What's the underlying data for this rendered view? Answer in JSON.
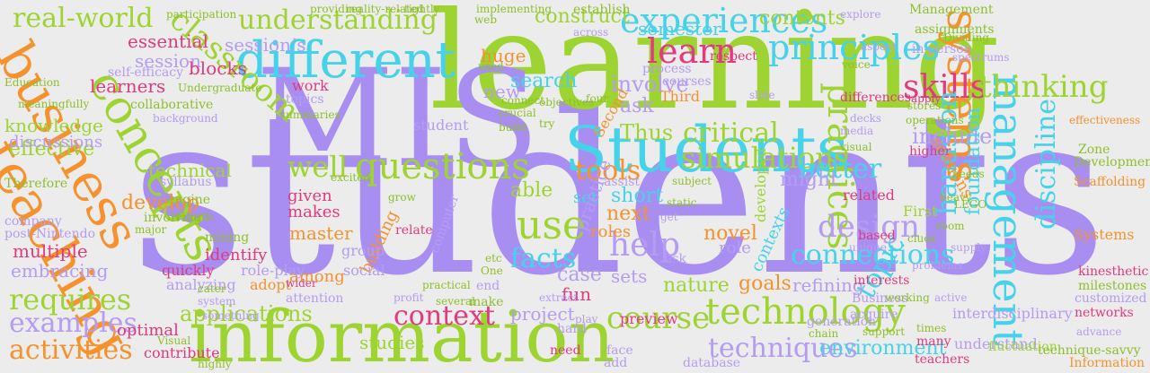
{
  "palette": {
    "background": "#ececec",
    "purple": "#a98ef2",
    "green": "#9ed431",
    "orange": "#f6922d",
    "cyan": "#46d3ea",
    "pink": "#e23a7e",
    "lightpurple": "#b59cf2",
    "olive": "#8fbf2a"
  },
  "words": [
    {
      "text": "students",
      "color": "purple",
      "weight": "giant"
    },
    {
      "text": "learning",
      "color": "green",
      "weight": "huge"
    },
    {
      "text": "MIS",
      "color": "purple",
      "weight": "huge"
    },
    {
      "text": "information",
      "color": "green",
      "weight": "large"
    },
    {
      "text": "business",
      "color": "orange",
      "weight": "large"
    },
    {
      "text": "teaching",
      "color": "orange",
      "weight": "large"
    },
    {
      "text": "concepts",
      "color": "green",
      "weight": "large"
    },
    {
      "text": "different",
      "color": "cyan",
      "weight": "large"
    },
    {
      "text": "Students",
      "color": "cyan",
      "weight": "large"
    },
    {
      "text": "systems",
      "color": "orange",
      "weight": "large"
    },
    {
      "text": "management",
      "color": "cyan",
      "weight": "large"
    },
    {
      "text": "classroom",
      "color": "green",
      "weight": "medium"
    },
    {
      "text": "questions",
      "color": "green",
      "weight": "medium"
    },
    {
      "text": "understanding",
      "color": "green",
      "weight": "medium"
    },
    {
      "text": "real-world",
      "color": "green",
      "weight": "medium"
    },
    {
      "text": "principles",
      "color": "cyan",
      "weight": "medium"
    },
    {
      "text": "experiences",
      "color": "cyan",
      "weight": "medium"
    },
    {
      "text": "learn",
      "color": "pink",
      "weight": "medium"
    },
    {
      "text": "skills",
      "color": "pink",
      "weight": "medium"
    },
    {
      "text": "thinking",
      "color": "green",
      "weight": "medium"
    },
    {
      "text": "practices",
      "color": "green",
      "weight": "medium"
    },
    {
      "text": "technology",
      "color": "green",
      "weight": "medium"
    },
    {
      "text": "context",
      "color": "pink",
      "weight": "medium"
    },
    {
      "text": "course",
      "color": "green",
      "weight": "medium"
    },
    {
      "text": "design",
      "color": "lightpurple",
      "weight": "medium"
    },
    {
      "text": "hands-on",
      "color": "cyan",
      "weight": "medium"
    },
    {
      "text": "discipline",
      "color": "cyan",
      "weight": "medium"
    },
    {
      "text": "topic",
      "color": "cyan",
      "weight": "medium"
    },
    {
      "text": "requires",
      "color": "green",
      "weight": "medium"
    },
    {
      "text": "examples",
      "color": "lightpurple",
      "weight": "medium"
    },
    {
      "text": "activities",
      "color": "orange",
      "weight": "medium"
    },
    {
      "text": "use",
      "color": "green",
      "weight": "medium"
    },
    {
      "text": "help",
      "color": "lightpurple",
      "weight": "medium"
    },
    {
      "text": "tools",
      "color": "orange",
      "weight": "medium"
    },
    {
      "text": "simulations",
      "color": "green",
      "weight": "medium"
    },
    {
      "text": "techniques",
      "color": "lightpurple",
      "weight": "medium"
    },
    {
      "text": "applications",
      "color": "green",
      "weight": "medium"
    },
    {
      "text": "connections",
      "color": "cyan",
      "weight": "medium"
    },
    {
      "text": "better",
      "color": "cyan",
      "weight": "medium"
    },
    {
      "text": "critical",
      "color": "green",
      "weight": "medium"
    },
    {
      "text": "facts",
      "color": "cyan",
      "weight": "medium"
    },
    {
      "text": "include",
      "color": "lightpurple",
      "weight": "small"
    },
    {
      "text": "foundation",
      "color": "cyan",
      "weight": "small"
    },
    {
      "text": "Thus",
      "color": "green",
      "weight": "small"
    },
    {
      "text": "well",
      "color": "green",
      "weight": "small"
    },
    {
      "text": "essential",
      "color": "pink",
      "weight": "small"
    },
    {
      "text": "session",
      "color": "lightpurple",
      "weight": "small"
    },
    {
      "text": "session’s",
      "color": "lightpurple",
      "weight": "small"
    },
    {
      "text": "semester",
      "color": "cyan",
      "weight": "small"
    },
    {
      "text": "contents",
      "color": "green",
      "weight": "small"
    },
    {
      "text": "construct",
      "color": "green",
      "weight": "small"
    },
    {
      "text": "learners",
      "color": "pink",
      "weight": "small"
    },
    {
      "text": "blocks",
      "color": "pink",
      "weight": "small"
    },
    {
      "text": "involve",
      "color": "lightpurple",
      "weight": "small"
    },
    {
      "text": "ask",
      "color": "lightpurple",
      "weight": "small"
    },
    {
      "text": "search",
      "color": "cyan",
      "weight": "small"
    },
    {
      "text": "huge",
      "color": "orange",
      "weight": "small"
    },
    {
      "text": "new",
      "color": "lightpurple",
      "weight": "small"
    },
    {
      "text": "develop",
      "color": "orange",
      "weight": "small"
    },
    {
      "text": "technical",
      "color": "green",
      "weight": "small"
    },
    {
      "text": "effective",
      "color": "green",
      "weight": "small"
    },
    {
      "text": "knowledge",
      "color": "green",
      "weight": "small"
    },
    {
      "text": "discussions",
      "color": "lightpurple",
      "weight": "small"
    },
    {
      "text": "embracing",
      "color": "lightpurple",
      "weight": "small"
    },
    {
      "text": "multiple",
      "color": "pink",
      "weight": "small"
    },
    {
      "text": "short",
      "color": "cyan",
      "weight": "small"
    },
    {
      "text": "able",
      "color": "green",
      "weight": "small"
    },
    {
      "text": "set",
      "color": "cyan",
      "weight": "small"
    },
    {
      "text": "might",
      "color": "lightpurple",
      "weight": "small"
    },
    {
      "text": "novel",
      "color": "orange",
      "weight": "small"
    },
    {
      "text": "next",
      "color": "orange",
      "weight": "small"
    },
    {
      "text": "case",
      "color": "lightpurple",
      "weight": "small"
    },
    {
      "text": "fun",
      "color": "pink",
      "weight": "small"
    },
    {
      "text": "sets",
      "color": "lightpurple",
      "weight": "small"
    },
    {
      "text": "practice",
      "color": "lightpurple",
      "weight": "small"
    },
    {
      "text": "master",
      "color": "orange",
      "weight": "small"
    },
    {
      "text": "building",
      "color": "orange",
      "weight": "small"
    },
    {
      "text": "among",
      "color": "orange",
      "weight": "small"
    },
    {
      "text": "group",
      "color": "lightpurple",
      "weight": "small"
    },
    {
      "text": "social",
      "color": "lightpurple",
      "weight": "small"
    },
    {
      "text": "makes",
      "color": "pink",
      "weight": "small"
    },
    {
      "text": "given",
      "color": "pink",
      "weight": "small"
    },
    {
      "text": "project",
      "color": "lightpurple",
      "weight": "small"
    },
    {
      "text": "studies",
      "color": "green",
      "weight": "small"
    },
    {
      "text": "optimal",
      "color": "pink",
      "weight": "small"
    },
    {
      "text": "preview",
      "color": "pink",
      "weight": "small"
    },
    {
      "text": "nature",
      "color": "green",
      "weight": "small"
    },
    {
      "text": "goals",
      "color": "orange",
      "weight": "small"
    },
    {
      "text": "refining",
      "color": "lightpurple",
      "weight": "small"
    },
    {
      "text": "interdisciplinary",
      "color": "lightpurple",
      "weight": "small"
    },
    {
      "text": "environment",
      "color": "cyan",
      "weight": "small"
    },
    {
      "text": "understand",
      "color": "lightpurple",
      "weight": "small"
    },
    {
      "text": "sessions",
      "color": "orange",
      "weight": "small"
    },
    {
      "text": "developed",
      "color": "green",
      "weight": "small"
    },
    {
      "text": "roles",
      "color": "orange",
      "weight": "small"
    },
    {
      "text": "role",
      "color": "lightpurple",
      "weight": "small"
    },
    {
      "text": "contexts",
      "color": "cyan",
      "weight": "small"
    },
    {
      "text": "First",
      "color": "green",
      "weight": "small"
    },
    {
      "text": "related",
      "color": "pink",
      "weight": "small"
    },
    {
      "text": "Second",
      "color": "orange",
      "weight": "small"
    },
    {
      "text": "Third",
      "color": "orange",
      "weight": "small"
    },
    {
      "text": "identify",
      "color": "pink",
      "weight": "small"
    },
    {
      "text": "adopt",
      "color": "orange",
      "weight": "small"
    },
    {
      "text": "role-play",
      "color": "lightpurple",
      "weight": "small"
    },
    {
      "text": "quickly",
      "color": "pink",
      "weight": "small"
    },
    {
      "text": "analyzing",
      "color": "lightpurple",
      "weight": "small"
    },
    {
      "text": "contribute",
      "color": "pink",
      "weight": "small"
    },
    {
      "text": "Systems",
      "color": "orange",
      "weight": "small"
    },
    {
      "text": "Management",
      "color": "olive",
      "weight": "small"
    },
    {
      "text": "Development",
      "color": "olive",
      "weight": "small"
    },
    {
      "text": "Scaffolding",
      "color": "orange",
      "weight": "small"
    },
    {
      "text": "milestones",
      "color": "olive",
      "weight": "small"
    },
    {
      "text": "kinesthetic",
      "color": "pink",
      "weight": "small"
    },
    {
      "text": "customized",
      "color": "lightpurple",
      "weight": "small"
    },
    {
      "text": "networks",
      "color": "pink",
      "weight": "small"
    },
    {
      "text": "fluctuation",
      "color": "green",
      "weight": "small"
    },
    {
      "text": "technique-savvy",
      "color": "olive",
      "weight": "small"
    },
    {
      "text": "Information",
      "color": "orange",
      "weight": "small"
    },
    {
      "text": "database",
      "color": "lightpurple",
      "weight": "small"
    },
    {
      "text": "teachers",
      "color": "pink",
      "weight": "small"
    },
    {
      "text": "many",
      "color": "pink",
      "weight": "small"
    },
    {
      "text": "face",
      "color": "lightpurple",
      "weight": "small"
    },
    {
      "text": "add",
      "color": "lightpurple",
      "weight": "small"
    },
    {
      "text": "need",
      "color": "pink",
      "weight": "small"
    },
    {
      "text": "hard",
      "color": "lightpurple",
      "weight": "small"
    },
    {
      "text": "end",
      "color": "lightpurple",
      "weight": "small"
    },
    {
      "text": "make",
      "color": "olive",
      "weight": "small"
    },
    {
      "text": "ask",
      "color": "lightpurple",
      "weight": "small"
    },
    {
      "text": "work",
      "color": "pink",
      "weight": "small"
    },
    {
      "text": "topics",
      "color": "lightpurple",
      "weight": "small"
    },
    {
      "text": "collaborative",
      "color": "olive",
      "weight": "small"
    },
    {
      "text": "self-efficacy",
      "color": "lightpurple",
      "weight": "small"
    },
    {
      "text": "Undergraduate",
      "color": "olive",
      "weight": "small"
    },
    {
      "text": "background",
      "color": "lightpurple",
      "weight": "small"
    },
    {
      "text": "post-Nintendo",
      "color": "lightpurple",
      "weight": "small"
    },
    {
      "text": "company",
      "color": "lightpurple",
      "weight": "small"
    },
    {
      "text": "Therefore",
      "color": "olive",
      "weight": "small"
    },
    {
      "text": "syllabus",
      "color": "lightpurple",
      "weight": "small"
    },
    {
      "text": "engine",
      "color": "olive",
      "weight": "small"
    },
    {
      "text": "mining",
      "color": "olive",
      "weight": "small"
    },
    {
      "text": "Fourth",
      "color": "olive",
      "weight": "small"
    },
    {
      "text": "cater",
      "color": "olive",
      "weight": "small"
    },
    {
      "text": "wider",
      "color": "pink",
      "weight": "small"
    },
    {
      "text": "system",
      "color": "lightpurple",
      "weight": "small"
    },
    {
      "text": "profit",
      "color": "lightpurple",
      "weight": "small"
    },
    {
      "text": "grow",
      "color": "olive",
      "weight": "small"
    },
    {
      "text": "excited",
      "color": "olive",
      "weight": "small"
    },
    {
      "text": "relate",
      "color": "pink",
      "weight": "small"
    },
    {
      "text": "One",
      "color": "olive",
      "weight": "small"
    },
    {
      "text": "computer",
      "color": "lightpurple",
      "weight": "small"
    },
    {
      "text": "etc",
      "color": "olive",
      "weight": "small"
    },
    {
      "text": "get",
      "color": "lightpurple",
      "weight": "small"
    },
    {
      "text": "acquire",
      "color": "lightpurple",
      "weight": "small"
    },
    {
      "text": "interests",
      "color": "pink",
      "weight": "small"
    },
    {
      "text": "Business",
      "color": "lightpurple",
      "weight": "small"
    },
    {
      "text": "times",
      "color": "olive",
      "weight": "small"
    },
    {
      "text": "advance",
      "color": "lightpurple",
      "weight": "small"
    },
    {
      "text": "apply",
      "color": "pink",
      "weight": "small"
    },
    {
      "text": "visual",
      "color": "olive",
      "weight": "small"
    },
    {
      "text": "voice",
      "color": "olive",
      "weight": "small"
    },
    {
      "text": "LEGO",
      "color": "olive",
      "weight": "small"
    },
    {
      "text": "assignments",
      "color": "olive",
      "weight": "small"
    },
    {
      "text": "effectiveness",
      "color": "orange",
      "weight": "small"
    },
    {
      "text": "Zone",
      "color": "olive",
      "weight": "small"
    },
    {
      "text": "Dividing",
      "color": "olive",
      "weight": "small"
    },
    {
      "text": "in-person",
      "color": "lightpurple",
      "weight": "small"
    },
    {
      "text": "stores",
      "color": "olive",
      "weight": "small"
    },
    {
      "text": "operations",
      "color": "olive",
      "weight": "small"
    },
    {
      "text": "higher",
      "color": "pink",
      "weight": "small"
    },
    {
      "text": "decks",
      "color": "lightpurple",
      "weight": "small"
    },
    {
      "text": "slide",
      "color": "lightpurple",
      "weight": "small"
    },
    {
      "text": "respect",
      "color": "pink",
      "weight": "small"
    },
    {
      "text": "explore",
      "color": "lightpurple",
      "weight": "small"
    },
    {
      "text": "establish",
      "color": "olive",
      "weight": "small"
    },
    {
      "text": "across",
      "color": "lightpurple",
      "weight": "small"
    },
    {
      "text": "web",
      "color": "olive",
      "weight": "small"
    },
    {
      "text": "used",
      "color": "olive",
      "weight": "small"
    },
    {
      "text": "process",
      "color": "lightpurple",
      "weight": "small"
    },
    {
      "text": "tightly",
      "color": "olive",
      "weight": "small"
    },
    {
      "text": "providing",
      "color": "olive",
      "weight": "small"
    },
    {
      "text": "reality-related",
      "color": "olive",
      "weight": "small"
    },
    {
      "text": "unique",
      "color": "lightpurple",
      "weight": "small"
    },
    {
      "text": "differences",
      "color": "pink",
      "weight": "small"
    },
    {
      "text": "media",
      "color": "lightpurple",
      "weight": "small"
    },
    {
      "text": "aspect",
      "color": "lightpurple",
      "weight": "small"
    },
    {
      "text": "spectrums",
      "color": "lightpurple",
      "weight": "small"
    },
    {
      "text": "problems",
      "color": "lightpurple",
      "weight": "small"
    },
    {
      "text": "room",
      "color": "olive",
      "weight": "small"
    },
    {
      "text": "needs",
      "color": "olive",
      "weight": "small"
    },
    {
      "text": "supply",
      "color": "lightpurple",
      "weight": "small"
    },
    {
      "text": "heavy",
      "color": "olive",
      "weight": "small"
    },
    {
      "text": "clues",
      "color": "olive",
      "weight": "small"
    },
    {
      "text": "based",
      "color": "pink",
      "weight": "small"
    },
    {
      "text": "generation",
      "color": "lightpurple",
      "weight": "small"
    },
    {
      "text": "chain",
      "color": "olive",
      "weight": "small"
    },
    {
      "text": "support",
      "color": "olive",
      "weight": "small"
    },
    {
      "text": "working",
      "color": "olive",
      "weight": "small"
    },
    {
      "text": "active",
      "color": "lightpurple",
      "weight": "small"
    },
    {
      "text": "four",
      "color": "olive",
      "weight": "small"
    },
    {
      "text": "objectives",
      "color": "olive",
      "weight": "small"
    },
    {
      "text": "courses",
      "color": "lightpurple",
      "weight": "small"
    },
    {
      "text": "connect",
      "color": "olive",
      "weight": "small"
    },
    {
      "text": "summaries",
      "color": "olive",
      "weight": "small"
    },
    {
      "text": "crucial",
      "color": "olive",
      "weight": "small"
    },
    {
      "text": "build",
      "color": "olive",
      "weight": "small"
    },
    {
      "text": "try",
      "color": "olive",
      "weight": "small"
    },
    {
      "text": "assist",
      "color": "lightpurple",
      "weight": "small"
    },
    {
      "text": "subject",
      "color": "olive",
      "weight": "small"
    },
    {
      "text": "extract",
      "color": "lightpurple",
      "weight": "small"
    },
    {
      "text": "play",
      "color": "lightpurple",
      "weight": "small"
    },
    {
      "text": "static",
      "color": "olive",
      "weight": "small"
    },
    {
      "text": "several",
      "color": "olive",
      "weight": "small"
    },
    {
      "text": "practical",
      "color": "olive",
      "weight": "small"
    },
    {
      "text": "attention",
      "color": "lightpurple",
      "weight": "small"
    },
    {
      "text": "something",
      "color": "lightpurple",
      "weight": "small"
    },
    {
      "text": "involving",
      "color": "olive",
      "weight": "small"
    },
    {
      "text": "major",
      "color": "olive",
      "weight": "small"
    },
    {
      "text": "Visual",
      "color": "olive",
      "weight": "small"
    },
    {
      "text": "highly",
      "color": "olive",
      "weight": "small"
    },
    {
      "text": "meaningfully",
      "color": "olive",
      "weight": "small"
    },
    {
      "text": "Education",
      "color": "olive",
      "weight": "small"
    },
    {
      "text": "participation",
      "color": "olive",
      "weight": "small"
    },
    {
      "text": "implementing",
      "color": "olive",
      "weight": "small"
    },
    {
      "text": "student",
      "color": "lightpurple",
      "weight": "small"
    }
  ]
}
